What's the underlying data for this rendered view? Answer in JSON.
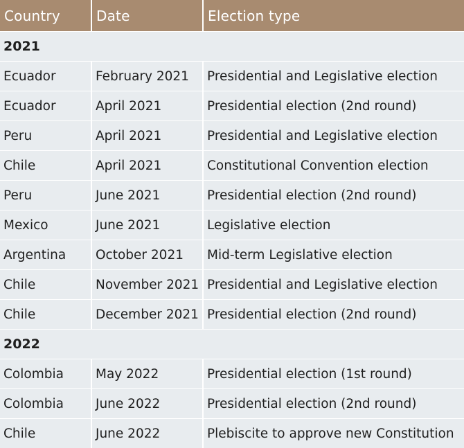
{
  "table": {
    "headers": [
      "Country",
      "Date",
      "Election type"
    ],
    "groups": [
      {
        "year": "2021",
        "rows": [
          [
            "Ecuador",
            "February 2021",
            "Presidential and Legislative election"
          ],
          [
            "Ecuador",
            "April 2021",
            "Presidential election (2nd round)"
          ],
          [
            "Peru",
            "April 2021",
            "Presidential and Legislative election"
          ],
          [
            "Chile",
            "April 2021",
            "Constitutional Convention election"
          ],
          [
            "Peru",
            "June 2021",
            "Presidential election (2nd round)"
          ],
          [
            "Mexico",
            "June 2021",
            "Legislative election"
          ],
          [
            "Argentina",
            "October 2021",
            "Mid-term Legislative election"
          ],
          [
            "Chile",
            "November 2021",
            "Presidential and Legislative election"
          ],
          [
            "Chile",
            "December 2021",
            "Presidential election (2nd round)"
          ]
        ]
      },
      {
        "year": "2022",
        "rows": [
          [
            "Colombia",
            "May 2022",
            "Presidential election (1st round)"
          ],
          [
            "Colombia",
            "June 2022",
            "Presidential election (2nd round)"
          ],
          [
            "Chile",
            "June 2022",
            "Plebiscite to approve new Constitution"
          ]
        ]
      }
    ]
  },
  "colors": {
    "header_bg": "#a88b70",
    "header_text": "#ffffff",
    "row_bg": "#e8ecef",
    "divider": "#ffffff"
  }
}
